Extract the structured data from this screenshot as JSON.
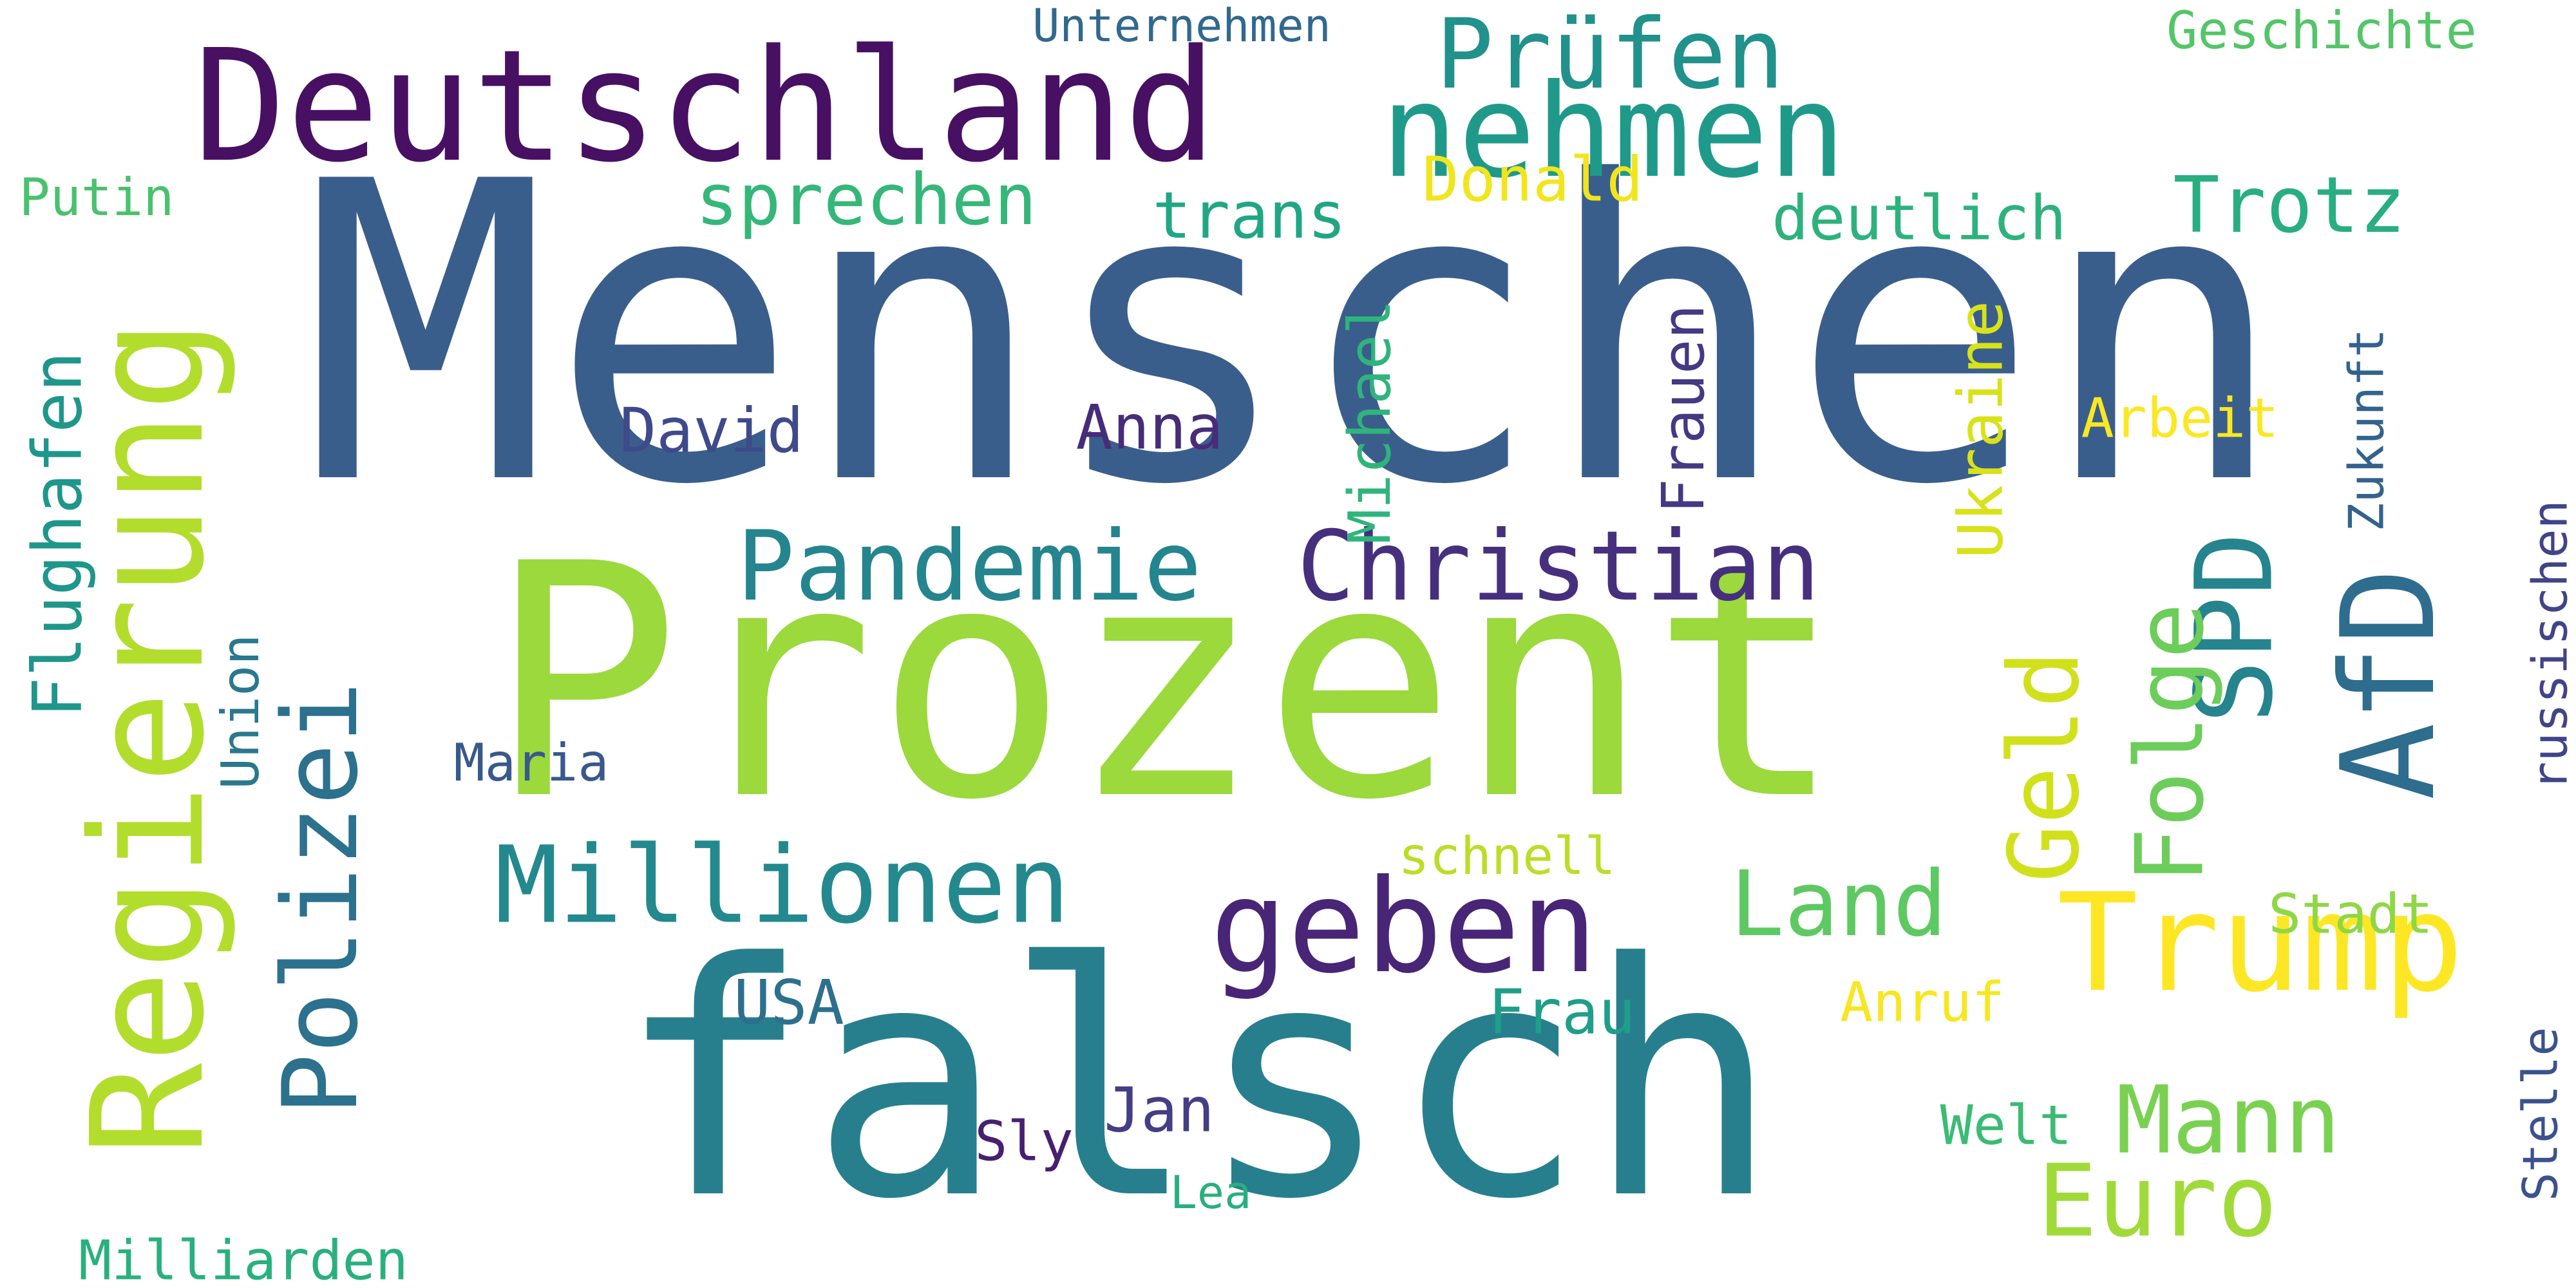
{
  "cloud": {
    "background": "#ffffff",
    "words": [
      {
        "text": "Menschen",
        "color": "#3a5e8c",
        "orientation": "horizontal"
      },
      {
        "text": "Prozent",
        "color": "#9bd93c",
        "orientation": "horizontal"
      },
      {
        "text": "falsch",
        "color": "#277f8e",
        "orientation": "horizontal"
      },
      {
        "text": "Deutschland",
        "color": "#471063",
        "orientation": "horizontal"
      },
      {
        "text": "Regierung",
        "color": "#b2dd2d",
        "orientation": "vertical"
      },
      {
        "text": "nehmen",
        "color": "#1f9a8a",
        "orientation": "horizontal"
      },
      {
        "text": "Trump",
        "color": "#fde725",
        "orientation": "horizontal"
      },
      {
        "text": "geben",
        "color": "#482576",
        "orientation": "horizontal"
      },
      {
        "text": "Millionen",
        "color": "#23898e",
        "orientation": "horizontal"
      },
      {
        "text": "Polizei",
        "color": "#2c718e",
        "orientation": "vertical"
      },
      {
        "text": "Christian",
        "color": "#46307e",
        "orientation": "horizontal"
      },
      {
        "text": "Pandemie",
        "color": "#25858e",
        "orientation": "horizontal"
      },
      {
        "text": "AfD",
        "color": "#2e6d8e",
        "orientation": "vertical"
      },
      {
        "text": "SPD",
        "color": "#25848e",
        "orientation": "vertical"
      },
      {
        "text": "Folge",
        "color": "#6ccd5a",
        "orientation": "vertical"
      },
      {
        "text": "Geld",
        "color": "#d0e11c",
        "orientation": "vertical"
      },
      {
        "text": "Prüfen",
        "color": "#21918c",
        "orientation": "horizontal"
      },
      {
        "text": "Euro",
        "color": "#a0da39",
        "orientation": "horizontal"
      },
      {
        "text": "Mann",
        "color": "#7ad151",
        "orientation": "horizontal"
      },
      {
        "text": "Land",
        "color": "#5ec962",
        "orientation": "horizontal"
      },
      {
        "text": "Trotz",
        "color": "#28ae80",
        "orientation": "horizontal"
      },
      {
        "text": "sprechen",
        "color": "#35b779",
        "orientation": "horizontal"
      },
      {
        "text": "deutlich",
        "color": "#2db27d",
        "orientation": "horizontal"
      },
      {
        "text": "trans",
        "color": "#21a685",
        "orientation": "horizontal"
      },
      {
        "text": "Donald",
        "color": "#f1e51d",
        "orientation": "horizontal"
      },
      {
        "text": "Flughafen",
        "color": "#1f968b",
        "orientation": "vertical"
      },
      {
        "text": "Union",
        "color": "#2a788e",
        "orientation": "vertical"
      },
      {
        "text": "Michael",
        "color": "#2fb47c",
        "orientation": "vertical"
      },
      {
        "text": "Frauen",
        "color": "#443983",
        "orientation": "vertical"
      },
      {
        "text": "Ukraine",
        "color": "#d8e219",
        "orientation": "vertical"
      },
      {
        "text": "Zukunft",
        "color": "#33638d",
        "orientation": "vertical"
      },
      {
        "text": "russischen",
        "color": "#414487",
        "orientation": "vertical"
      },
      {
        "text": "Stelle",
        "color": "#3b528b",
        "orientation": "vertical"
      },
      {
        "text": "David",
        "color": "#3e4a89",
        "orientation": "horizontal"
      },
      {
        "text": "Anna",
        "color": "#472c7a",
        "orientation": "horizontal"
      },
      {
        "text": "Arbeit",
        "color": "#fbe723",
        "orientation": "horizontal"
      },
      {
        "text": "Maria",
        "color": "#38598c",
        "orientation": "horizontal"
      },
      {
        "text": "schnell",
        "color": "#bade28",
        "orientation": "horizontal"
      },
      {
        "text": "Stadt",
        "color": "#8fd744",
        "orientation": "horizontal"
      },
      {
        "text": "Anruf",
        "color": "#f8e621",
        "orientation": "horizontal"
      },
      {
        "text": "USA",
        "color": "#2d708e",
        "orientation": "horizontal"
      },
      {
        "text": "Frau",
        "color": "#1f9e89",
        "orientation": "horizontal"
      },
      {
        "text": "Jan",
        "color": "#433e85",
        "orientation": "horizontal"
      },
      {
        "text": "Sly",
        "color": "#481f70",
        "orientation": "horizontal"
      },
      {
        "text": "Welt",
        "color": "#3bbb75",
        "orientation": "horizontal"
      },
      {
        "text": "Lea",
        "color": "#29af7f",
        "orientation": "horizontal"
      },
      {
        "text": "Milliarden",
        "color": "#2ab07f",
        "orientation": "horizontal"
      },
      {
        "text": "Putin",
        "color": "#4ac16d",
        "orientation": "horizontal"
      },
      {
        "text": "Unternehmen",
        "color": "#31688e",
        "orientation": "horizontal"
      },
      {
        "text": "Geschichte",
        "color": "#54c568",
        "orientation": "horizontal"
      }
    ]
  }
}
